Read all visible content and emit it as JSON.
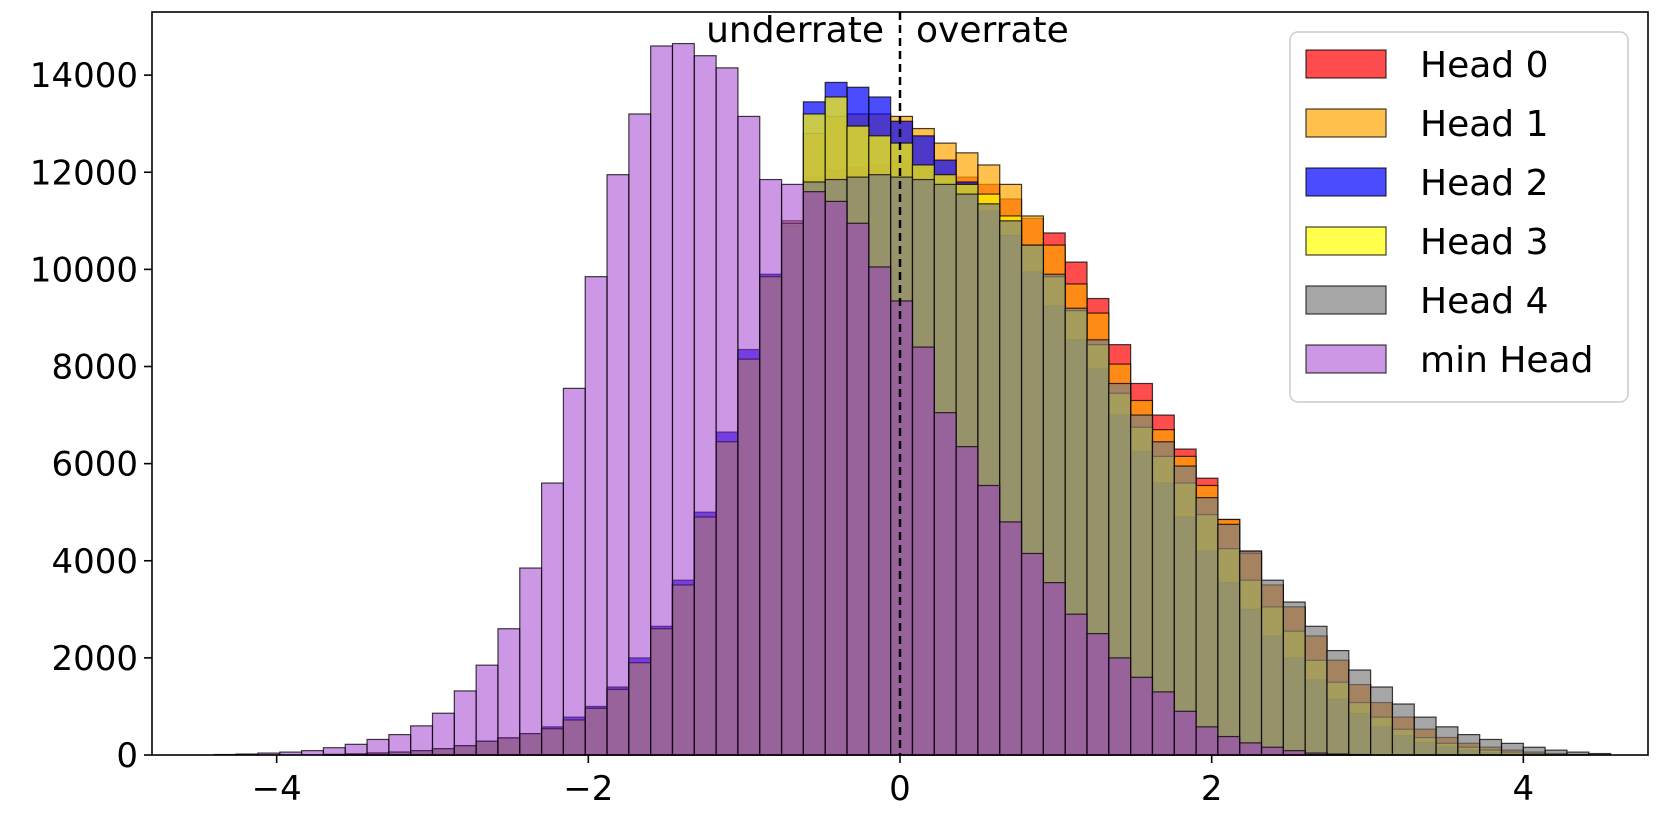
{
  "chart_data": {
    "type": "bar",
    "subtype": "overlaid-histogram",
    "title": "",
    "xlabel": "",
    "ylabel": "",
    "xlim": [
      -4.8,
      4.8
    ],
    "ylim": [
      0,
      15300
    ],
    "xticks": [
      -4,
      -2,
      0,
      2,
      4
    ],
    "yticks": [
      0,
      2000,
      4000,
      6000,
      8000,
      10000,
      12000,
      14000
    ],
    "grid": false,
    "legend_position": "top-right",
    "annotations": [
      {
        "text": "underrate",
        "x": 0,
        "side": "left"
      },
      {
        "text": "overrate",
        "x": 0,
        "side": "right"
      }
    ],
    "reference_line": {
      "x": 0,
      "style": "dashed"
    },
    "bin_width": 0.14,
    "bin_start": -4.4,
    "series": [
      {
        "name": "Head 0",
        "color": "#ff0000",
        "alpha": 0.7,
        "values": [
          0,
          0,
          0,
          0,
          0,
          10,
          20,
          40,
          60,
          90,
          130,
          190,
          280,
          350,
          440,
          540,
          720,
          960,
          1350,
          1900,
          2600,
          3500,
          4900,
          6450,
          8150,
          9850,
          10950,
          11900,
          12050,
          12100,
          12150,
          12250,
          12100,
          11950,
          11900,
          11750,
          11450,
          11050,
          10750,
          10150,
          9400,
          8450,
          7650,
          7000,
          6300,
          5700,
          4850,
          4200,
          3500,
          3050,
          2450,
          1950,
          1450,
          1080,
          780,
          530,
          360,
          240,
          160,
          100,
          60,
          30,
          10,
          0
        ]
      },
      {
        "name": "Head 1",
        "color": "#ffa500",
        "alpha": 0.7,
        "values": [
          0,
          0,
          0,
          0,
          0,
          10,
          20,
          40,
          60,
          90,
          130,
          190,
          280,
          350,
          440,
          540,
          720,
          960,
          1350,
          1900,
          2600,
          3500,
          4900,
          6450,
          8150,
          9850,
          11000,
          12800,
          13150,
          13200,
          13200,
          13150,
          12900,
          12600,
          12400,
          12150,
          11750,
          11100,
          10500,
          9700,
          9100,
          8050,
          7300,
          6700,
          6150,
          5550,
          4850,
          4150,
          3500,
          3050,
          2450,
          1950,
          1450,
          1080,
          780,
          530,
          360,
          240,
          160,
          100,
          60,
          30,
          10,
          0
        ]
      },
      {
        "name": "Head 2",
        "color": "#0000ff",
        "alpha": 0.7,
        "values": [
          0,
          0,
          0,
          0,
          0,
          10,
          20,
          40,
          60,
          90,
          130,
          190,
          280,
          350,
          440,
          580,
          780,
          1000,
          1400,
          2000,
          2650,
          3600,
          5000,
          6650,
          8350,
          9900,
          10900,
          13450,
          13850,
          13750,
          13550,
          13050,
          12750,
          12250,
          11800,
          11200,
          10700,
          9950,
          9250,
          8550,
          7950,
          7000,
          6250,
          5600,
          4900,
          4200,
          3550,
          3000,
          2450,
          2000,
          1550,
          1150,
          850,
          580,
          400,
          260,
          170,
          100,
          50,
          20,
          10,
          0,
          0,
          0
        ]
      },
      {
        "name": "Head 3",
        "color": "#ffff00",
        "alpha": 0.7,
        "values": [
          0,
          0,
          0,
          0,
          0,
          10,
          20,
          40,
          60,
          90,
          130,
          190,
          280,
          350,
          440,
          540,
          720,
          960,
          1350,
          1900,
          2600,
          3500,
          4900,
          6450,
          8150,
          9850,
          10950,
          13200,
          13550,
          12950,
          12750,
          12600,
          12150,
          11950,
          11750,
          11550,
          11100,
          10500,
          9850,
          9150,
          8450,
          7450,
          6750,
          6150,
          5600,
          4950,
          4250,
          3600,
          3050,
          2550,
          1950,
          1500,
          1080,
          780,
          530,
          360,
          240,
          160,
          100,
          60,
          30,
          10,
          0,
          0
        ]
      },
      {
        "name": "Head 4",
        "color": "#808080",
        "alpha": 0.7,
        "values": [
          0,
          0,
          0,
          0,
          0,
          10,
          20,
          40,
          60,
          90,
          130,
          190,
          280,
          350,
          440,
          540,
          720,
          960,
          1350,
          1900,
          2600,
          3500,
          4900,
          6450,
          8150,
          9850,
          10950,
          11800,
          11850,
          11900,
          11950,
          11900,
          11850,
          11750,
          11550,
          11350,
          11000,
          10500,
          9900,
          9200,
          8550,
          7650,
          7000,
          6450,
          5950,
          5300,
          4750,
          4200,
          3600,
          3150,
          2650,
          2150,
          1750,
          1400,
          1050,
          780,
          580,
          420,
          320,
          240,
          160,
          100,
          60,
          30
        ]
      },
      {
        "name": "min Head",
        "color": "#9932cc",
        "alpha": 0.5,
        "values": [
          10,
          20,
          40,
          60,
          90,
          150,
          220,
          320,
          420,
          600,
          860,
          1320,
          1850,
          2600,
          3850,
          5600,
          7550,
          9850,
          11950,
          13200,
          14600,
          14650,
          14400,
          14150,
          13150,
          11850,
          11750,
          11600,
          11400,
          10950,
          10050,
          9350,
          8400,
          7050,
          6350,
          5550,
          4800,
          4150,
          3550,
          2900,
          2500,
          2000,
          1600,
          1300,
          900,
          580,
          380,
          250,
          160,
          90,
          40,
          20,
          10,
          0,
          0,
          0,
          0,
          0,
          0,
          0,
          0,
          0,
          0,
          0
        ]
      }
    ]
  }
}
